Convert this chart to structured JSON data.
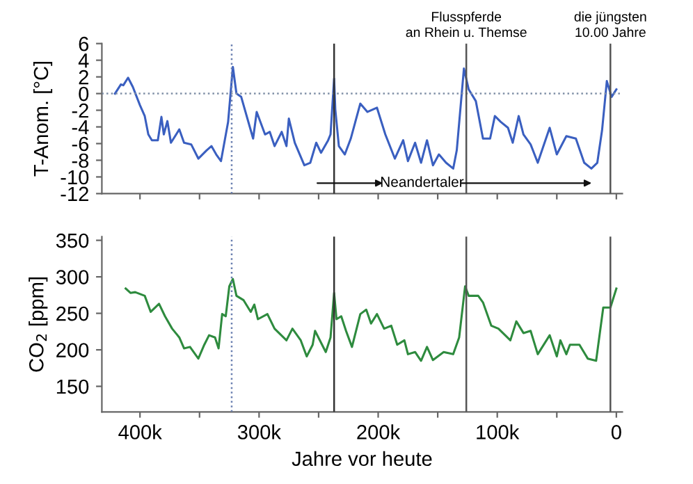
{
  "chart_data": [
    {
      "type": "line",
      "ylabel": "T-Anom. [°C]",
      "xlim": [
        432000,
        -5000
      ],
      "ylim": [
        -12,
        6
      ],
      "xticks": [
        {
          "value": 400000,
          "label": null
        },
        {
          "value": 350000,
          "label": null
        },
        {
          "value": 300000,
          "label": null
        },
        {
          "value": 250000,
          "label": null
        },
        {
          "value": 200000,
          "label": null
        },
        {
          "value": 150000,
          "label": null
        },
        {
          "value": 100000,
          "label": null
        },
        {
          "value": 50000,
          "label": null
        },
        {
          "value": 0,
          "label": null
        }
      ],
      "yticks": [
        -12,
        -10,
        -8,
        -6,
        -4,
        -2,
        0,
        2,
        4,
        6
      ],
      "tick_labels": "y",
      "grid": false,
      "legend": false,
      "series": [
        {
          "color": "#3a5fc0",
          "x": [
            421000,
            416000,
            414000,
            410000,
            406000,
            400000,
            396000,
            393000,
            390000,
            385000,
            382000,
            380000,
            377000,
            374000,
            367000,
            363000,
            357000,
            351000,
            344000,
            340000,
            336000,
            332000,
            326000,
            322000,
            319000,
            315000,
            305000,
            302000,
            295000,
            291000,
            287000,
            281000,
            277000,
            275000,
            270000,
            262000,
            257000,
            252000,
            248000,
            242000,
            240000,
            237000,
            236000,
            233000,
            228000,
            223000,
            215000,
            209000,
            201000,
            194000,
            186000,
            179000,
            175000,
            169000,
            164000,
            159000,
            154000,
            149000,
            143000,
            137000,
            134000,
            128000,
            124000,
            118000,
            112000,
            106000,
            102000,
            97000,
            91000,
            87000,
            82000,
            78000,
            72000,
            66000,
            56000,
            50000,
            42000,
            34000,
            27000,
            21000,
            16000,
            12000,
            8000,
            4000,
            0
          ],
          "values": [
            0,
            1.1,
            1.0,
            1.9,
            0.8,
            -1.4,
            -2.7,
            -4.9,
            -5.6,
            -5.6,
            -2.8,
            -4.9,
            -3.3,
            -5.9,
            -4.3,
            -5.9,
            -6.1,
            -7.8,
            -6.8,
            -6.3,
            -7.3,
            -8.1,
            -3.4,
            3.2,
            0,
            -0.4,
            -5.4,
            -2.2,
            -4.9,
            -4.6,
            -6.3,
            -4.6,
            -6.3,
            -3.0,
            -5.9,
            -8.6,
            -8.3,
            -5.9,
            -7.1,
            -5.6,
            -4.9,
            1.8,
            -1.9,
            -6.3,
            -7.3,
            -5.4,
            -1.2,
            -2.2,
            -1.7,
            -4.9,
            -7.8,
            -5.6,
            -8.1,
            -5.9,
            -8.3,
            -5.6,
            -8.6,
            -7.3,
            -8.3,
            -9.0,
            -6.8,
            3.0,
            0.5,
            -0.9,
            -5.4,
            -5.4,
            -2.7,
            -3.4,
            -4.1,
            -5.9,
            -2.7,
            -4.9,
            -6.1,
            -8.3,
            -4.1,
            -7.3,
            -5.1,
            -5.4,
            -8.3,
            -9.0,
            -8.3,
            -4.4,
            1.5,
            -0.4,
            0.5
          ]
        }
      ],
      "ref_lines": [
        {
          "axis": "y",
          "value": 0,
          "color": "#7f8fa6",
          "line_style": "dotted"
        },
        {
          "axis": "x",
          "value": 323000,
          "color": "#6a7fb0",
          "line_style": "dotted"
        },
        {
          "axis": "x",
          "value": 237000,
          "color": "#333333",
          "line_style": "solid"
        },
        {
          "axis": "x",
          "value": 126000,
          "color": "#555555",
          "line_style": "solid",
          "label": "Flusspferde\nan Rhein u. Themse"
        },
        {
          "axis": "x",
          "value": 5000,
          "color": "#555555",
          "line_style": "solid",
          "label": "die jüngsten\n10.00 Jahre"
        }
      ],
      "annotations": [
        "Neandertaler"
      ]
    },
    {
      "type": "line",
      "ylabel": "CO$_{2}$ [ppm]",
      "xlabel": "Jahre vor heute",
      "xlim": [
        432000,
        -5000
      ],
      "ylim": [
        115,
        355
      ],
      "xticks": [
        {
          "value": 400000,
          "label": "400k"
        },
        {
          "value": 350000,
          "label": null
        },
        {
          "value": 300000,
          "label": "300k"
        },
        {
          "value": 250000,
          "label": null
        },
        {
          "value": 200000,
          "label": "200k"
        },
        {
          "value": 150000,
          "label": null
        },
        {
          "value": 100000,
          "label": "100k"
        },
        {
          "value": 50000,
          "label": null
        },
        0
      ],
      "yticks": [
        150,
        200,
        250,
        300,
        350
      ],
      "grid": false,
      "legend": false,
      "series": [
        {
          "color": "#2e8b3e",
          "x": [
            412000,
            408000,
            404000,
            396000,
            391000,
            384000,
            379000,
            373000,
            367000,
            363000,
            358000,
            351000,
            346000,
            342000,
            337000,
            334000,
            331000,
            328000,
            325000,
            322000,
            319000,
            313000,
            307000,
            304000,
            301000,
            293000,
            287000,
            277000,
            272000,
            265000,
            260000,
            255000,
            253000,
            244000,
            240000,
            237000,
            235000,
            231000,
            227000,
            222000,
            215000,
            210000,
            206000,
            201000,
            195000,
            189000,
            184000,
            178000,
            175000,
            169000,
            164000,
            159000,
            154000,
            145000,
            137000,
            132000,
            127000,
            124000,
            116000,
            112000,
            105000,
            99000,
            89000,
            84000,
            78000,
            72000,
            66000,
            56000,
            50000,
            47000,
            42000,
            39000,
            31000,
            24000,
            17000,
            11000,
            5000,
            0
          ],
          "values": [
            284,
            278,
            279,
            274,
            252,
            263,
            246,
            229,
            217,
            202,
            204,
            188,
            207,
            220,
            217,
            202,
            249,
            246,
            287,
            297,
            274,
            268,
            252,
            262,
            242,
            249,
            229,
            213,
            229,
            213,
            191,
            207,
            226,
            197,
            217,
            278,
            242,
            246,
            226,
            204,
            249,
            255,
            236,
            249,
            229,
            233,
            207,
            213,
            194,
            197,
            185,
            204,
            186,
            197,
            194,
            217,
            287,
            274,
            274,
            265,
            233,
            229,
            213,
            239,
            223,
            226,
            194,
            220,
            191,
            213,
            194,
            207,
            207,
            188,
            185,
            258,
            258,
            284
          ]
        }
      ],
      "ref_lines": [
        {
          "axis": "x",
          "value": 323000,
          "color": "#6a7fb0",
          "line_style": "dotted"
        },
        {
          "axis": "x",
          "value": 237000,
          "color": "#333333",
          "line_style": "solid"
        },
        {
          "axis": "x",
          "value": 126000,
          "color": "#555555",
          "line_style": "solid"
        },
        {
          "axis": "x",
          "value": 5000,
          "color": "#555555",
          "line_style": "solid"
        }
      ]
    }
  ]
}
